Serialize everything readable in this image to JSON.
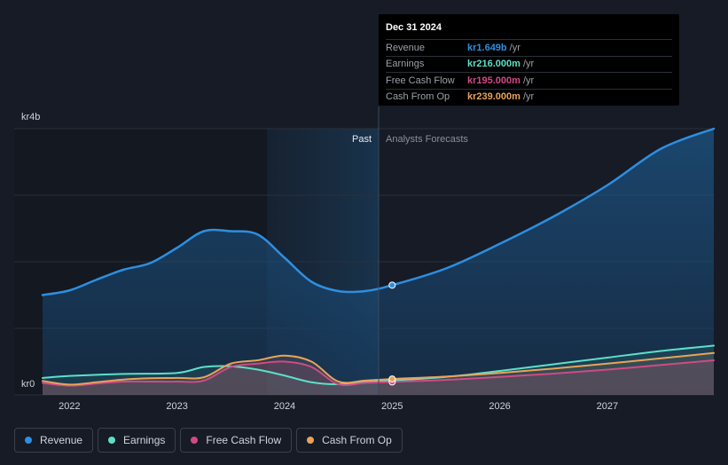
{
  "chart_data": {
    "type": "area",
    "currency_prefix": "kr",
    "y_axis": {
      "top_label": "kr4b",
      "bottom_label": "kr0",
      "ylim": [
        0,
        4000
      ]
    },
    "x_axis": {
      "ticks": [
        "2022",
        "2023",
        "2024",
        "2025",
        "2026",
        "2027"
      ],
      "xlim": [
        2021.75,
        2027.99
      ]
    },
    "past_label": "Past",
    "forecast_label": "Analysts Forecasts",
    "divider_year": 2025.0,
    "series": [
      {
        "name": "Revenue",
        "color": "#2d8fe0",
        "points": [
          [
            2021.75,
            1500
          ],
          [
            2022.0,
            1570
          ],
          [
            2022.25,
            1730
          ],
          [
            2022.5,
            1880
          ],
          [
            2022.75,
            1980
          ],
          [
            2023.0,
            2210
          ],
          [
            2023.25,
            2460
          ],
          [
            2023.5,
            2460
          ],
          [
            2023.75,
            2410
          ],
          [
            2024.0,
            2060
          ],
          [
            2024.25,
            1700
          ],
          [
            2024.5,
            1560
          ],
          [
            2024.75,
            1560
          ],
          [
            2025.0,
            1649
          ],
          [
            2025.5,
            1900
          ],
          [
            2026.0,
            2270
          ],
          [
            2026.5,
            2680
          ],
          [
            2027.0,
            3150
          ],
          [
            2027.5,
            3700
          ],
          [
            2027.99,
            4000
          ]
        ]
      },
      {
        "name": "Earnings",
        "color": "#5ce0c8",
        "points": [
          [
            2021.75,
            255
          ],
          [
            2022.0,
            285
          ],
          [
            2022.5,
            315
          ],
          [
            2023.0,
            330
          ],
          [
            2023.25,
            420
          ],
          [
            2023.5,
            430
          ],
          [
            2023.75,
            380
          ],
          [
            2024.0,
            290
          ],
          [
            2024.25,
            190
          ],
          [
            2024.5,
            160
          ],
          [
            2024.75,
            200
          ],
          [
            2025.0,
            216
          ],
          [
            2025.5,
            270
          ],
          [
            2026.0,
            360
          ],
          [
            2026.5,
            460
          ],
          [
            2027.0,
            560
          ],
          [
            2027.5,
            660
          ],
          [
            2027.99,
            740
          ]
        ]
      },
      {
        "name": "Free Cash Flow",
        "color": "#d04a86",
        "points": [
          [
            2021.75,
            180
          ],
          [
            2022.0,
            140
          ],
          [
            2022.25,
            170
          ],
          [
            2022.5,
            200
          ],
          [
            2022.75,
            200
          ],
          [
            2023.0,
            200
          ],
          [
            2023.25,
            215
          ],
          [
            2023.5,
            420
          ],
          [
            2023.75,
            470
          ],
          [
            2024.0,
            500
          ],
          [
            2024.25,
            420
          ],
          [
            2024.5,
            160
          ],
          [
            2024.75,
            180
          ],
          [
            2025.0,
            195
          ],
          [
            2025.5,
            225
          ],
          [
            2026.0,
            270
          ],
          [
            2026.5,
            320
          ],
          [
            2027.0,
            380
          ],
          [
            2027.5,
            450
          ],
          [
            2027.99,
            520
          ]
        ]
      },
      {
        "name": "Cash From Op",
        "color": "#e8a35a",
        "points": [
          [
            2021.75,
            210
          ],
          [
            2022.0,
            155
          ],
          [
            2022.25,
            190
          ],
          [
            2022.5,
            230
          ],
          [
            2022.75,
            250
          ],
          [
            2023.0,
            255
          ],
          [
            2023.25,
            265
          ],
          [
            2023.5,
            470
          ],
          [
            2023.75,
            520
          ],
          [
            2024.0,
            590
          ],
          [
            2024.25,
            500
          ],
          [
            2024.5,
            200
          ],
          [
            2024.75,
            215
          ],
          [
            2025.0,
            239
          ],
          [
            2025.5,
            275
          ],
          [
            2026.0,
            330
          ],
          [
            2026.5,
            395
          ],
          [
            2027.0,
            470
          ],
          [
            2027.5,
            550
          ],
          [
            2027.99,
            630
          ]
        ]
      }
    ],
    "grid": true,
    "legend_position": "bottom-left"
  },
  "tooltip": {
    "date": "Dec 31 2024",
    "unit": "/yr",
    "rows": [
      {
        "name": "Revenue",
        "value": "kr1.649b",
        "color": "#2d8fe0"
      },
      {
        "name": "Earnings",
        "value": "kr216.000m",
        "color": "#5ce0c8"
      },
      {
        "name": "Free Cash Flow",
        "value": "kr195.000m",
        "color": "#d04a86"
      },
      {
        "name": "Cash From Op",
        "value": "kr239.000m",
        "color": "#e8a35a"
      }
    ]
  },
  "legend": [
    {
      "label": "Revenue",
      "color": "#2d8fe0"
    },
    {
      "label": "Earnings",
      "color": "#5ce0c8"
    },
    {
      "label": "Free Cash Flow",
      "color": "#d04a86"
    },
    {
      "label": "Cash From Op",
      "color": "#e8a35a"
    }
  ]
}
